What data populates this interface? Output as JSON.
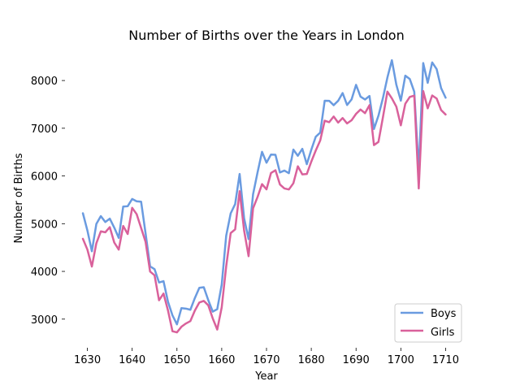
{
  "chart_data": {
    "type": "line",
    "title": "Number of Births over the Years in London",
    "xlabel": "Year",
    "ylabel": "Number of Births",
    "xlim": [
      1625,
      1715
    ],
    "ylim": [
      2400,
      8700
    ],
    "xticks": [
      1630,
      1640,
      1650,
      1660,
      1670,
      1680,
      1690,
      1700,
      1710
    ],
    "yticks": [
      3000,
      4000,
      5000,
      6000,
      7000,
      8000
    ],
    "grid": false,
    "legend_position": "lower right",
    "x": [
      1629,
      1630,
      1631,
      1632,
      1633,
      1634,
      1635,
      1636,
      1637,
      1638,
      1639,
      1640,
      1641,
      1642,
      1643,
      1644,
      1645,
      1646,
      1647,
      1648,
      1649,
      1650,
      1651,
      1652,
      1653,
      1654,
      1655,
      1656,
      1657,
      1658,
      1659,
      1660,
      1661,
      1662,
      1663,
      1664,
      1665,
      1666,
      1667,
      1668,
      1669,
      1670,
      1671,
      1672,
      1673,
      1674,
      1675,
      1676,
      1677,
      1678,
      1679,
      1680,
      1681,
      1682,
      1683,
      1684,
      1685,
      1686,
      1687,
      1688,
      1689,
      1690,
      1691,
      1692,
      1693,
      1694,
      1695,
      1696,
      1697,
      1698,
      1699,
      1700,
      1701,
      1702,
      1703,
      1704,
      1705,
      1706,
      1707,
      1708,
      1709,
      1710
    ],
    "series": [
      {
        "name": "Boys",
        "color": "#6a9be0",
        "values": [
          5218,
          4858,
          4422,
          4994,
          5158,
          5035,
          5106,
          4917,
          4703,
          5359,
          5366,
          5518,
          5470,
          5460,
          4793,
          4107,
          4047,
          3768,
          3796,
          3363,
          3079,
          2890,
          3231,
          3220,
          3196,
          3441,
          3655,
          3668,
          3396,
          3157,
          3209,
          3724,
          4748,
          5216,
          5411,
          6041,
          5114,
          4678,
          5616,
          6073,
          6506,
          6278,
          6449,
          6443,
          6073,
          6113,
          6058,
          6552,
          6423,
          6568,
          6247,
          6548,
          6822,
          6909,
          7577,
          7575,
          7484,
          7575,
          7737,
          7487,
          7604,
          7909,
          7662,
          7602,
          7676,
          6985,
          7263,
          7632,
          8062,
          8426,
          7911,
          7578,
          8102,
          8031,
          7765,
          6113,
          8366,
          7952,
          8379,
          8239,
          7840,
          7640
        ]
      },
      {
        "name": "Girls",
        "color": "#d9619b",
        "values": [
          4683,
          4457,
          4102,
          4590,
          4839,
          4820,
          4928,
          4605,
          4457,
          4952,
          4784,
          5332,
          5200,
          4910,
          4617,
          3997,
          3919,
          3395,
          3536,
          3181,
          2746,
          2722,
          2840,
          2908,
          2959,
          3179,
          3349,
          3382,
          3289,
          3013,
          2781,
          3247,
          4107,
          4803,
          4881,
          5681,
          4858,
          4319,
          5322,
          5560,
          5829,
          5719,
          6061,
          6120,
          5822,
          5738,
          5717,
          5847,
          6203,
          6033,
          6041,
          6299,
          6533,
          6744,
          7158,
          7127,
          7246,
          7119,
          7214,
          7101,
          7167,
          7302,
          7392,
          7316,
          7483,
          6647,
          6713,
          7229,
          7767,
          7626,
          7452,
          7061,
          7514,
          7656,
          7683,
          5738,
          7779,
          7417,
          7687,
          7623,
          7380,
          7288
        ]
      }
    ]
  }
}
